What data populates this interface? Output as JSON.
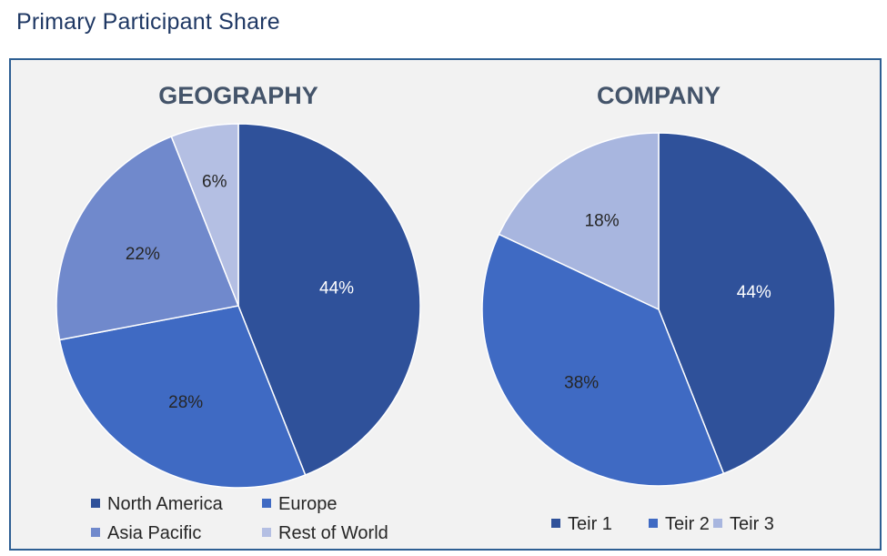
{
  "page": {
    "title": "Primary Participant Share"
  },
  "chart_data": [
    {
      "type": "pie",
      "title": "GEOGRAPHY",
      "categories": [
        "North America",
        "Europe",
        "Asia Pacific",
        "Rest of World"
      ],
      "values": [
        44,
        28,
        22,
        6
      ],
      "labels": [
        "44%",
        "28%",
        "22%",
        "6%"
      ],
      "colors": [
        "#2f519a",
        "#3f6ac3",
        "#7089cc",
        "#b4bfe3"
      ],
      "legend": "bottom"
    },
    {
      "type": "pie",
      "title": "COMPANY",
      "categories": [
        "Teir 1",
        "Teir 2",
        "Teir 3"
      ],
      "values": [
        44,
        38,
        18
      ],
      "labels": [
        "44%",
        "38%",
        "18%"
      ],
      "colors": [
        "#2f519a",
        "#3f6ac3",
        "#a8b6df"
      ],
      "legend": "bottom"
    }
  ]
}
